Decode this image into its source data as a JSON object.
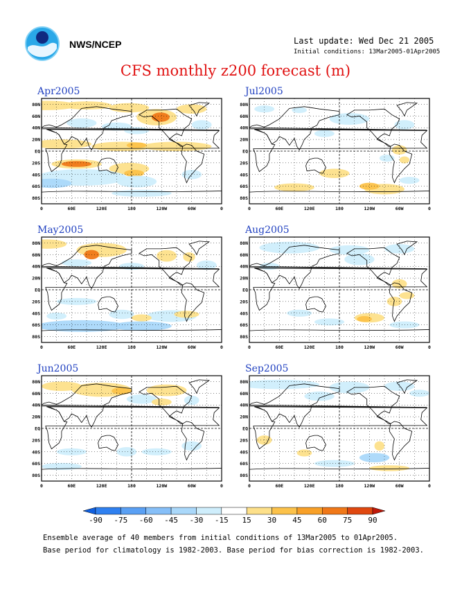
{
  "header": {
    "org": "NWS/NCEP",
    "last_update": "Last update: Wed Dec 21 2005",
    "initial_conditions": "Initial conditions: 13Mar2005-01Apr2005",
    "title": "CFS monthly z200 forecast (m)"
  },
  "map_axes": {
    "lat_labels": [
      "80N",
      "60N",
      "40N",
      "20N",
      "EQ",
      "20S",
      "40S",
      "60S",
      "80S"
    ],
    "lon_labels": [
      "0",
      "60E",
      "120E",
      "180",
      "120W",
      "60W",
      "0"
    ]
  },
  "panels": [
    {
      "title": "Apr2005"
    },
    {
      "title": "Jul2005"
    },
    {
      "title": "May2005"
    },
    {
      "title": "Aug2005"
    },
    {
      "title": "Jun2005"
    },
    {
      "title": "Sep2005"
    }
  ],
  "colorbar": {
    "labels": [
      "-90",
      "-75",
      "-60",
      "-45",
      "-30",
      "-15",
      "15",
      "30",
      "45",
      "60",
      "75",
      "90"
    ],
    "colors": [
      "#1060e0",
      "#2f80f0",
      "#5aa0f4",
      "#86bff8",
      "#aad8fa",
      "#cfeefc",
      "#ffffff",
      "#fde08a",
      "#fcc24a",
      "#f8a028",
      "#f07818",
      "#e04810",
      "#c01808"
    ]
  },
  "footer": {
    "line1": "Ensemble average of 40 members from initial conditions of 13Mar2005 to 01Apr2005.",
    "line2": "Base period for climatology is 1982-2003. Base period for bias correction is 1982-2003."
  },
  "colors": {
    "title": "#e01010",
    "panel_title": "#2040c0",
    "pos_light": "#fde08a",
    "pos_mid": "#fcc24a",
    "pos_strong": "#f07818",
    "neg_light": "#cfeefc",
    "neg_mid": "#aad8fa",
    "neg_strong": "#5aa0f4"
  }
}
